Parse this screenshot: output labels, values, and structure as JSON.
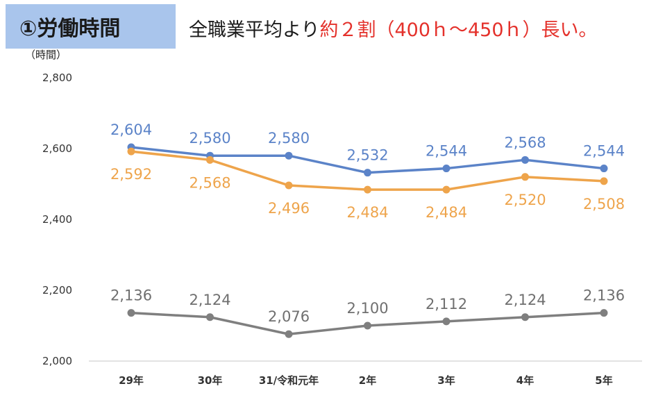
{
  "header": {
    "badge": "①労働時間",
    "headline_prefix": "全職業平均より",
    "headline_highlight": "約２割（400ｈ～450ｈ）長い。"
  },
  "colors": {
    "badge_bg": "#a9c5ec",
    "highlight": "#e4312b",
    "series_blue": "#5b83c8",
    "series_orange": "#eea44b",
    "series_gray": "#7f7f7f",
    "axis": "#d9d9d9"
  },
  "chart_data": {
    "type": "line",
    "unit_label": "（時間）",
    "categories": [
      "29年",
      "30年",
      "31/令和元年",
      "2年",
      "3年",
      "4年",
      "5年"
    ],
    "ylim": [
      2000,
      2800
    ],
    "yticks": [
      2000,
      2200,
      2400,
      2600,
      2800
    ],
    "ytick_labels": [
      "2,000",
      "2,200",
      "2,400",
      "2,600",
      "2,800"
    ],
    "grid": false,
    "legend": "none",
    "series": [
      {
        "color": "#5b83c8",
        "label_color": "#5b83c8",
        "values": [
          2604,
          2580,
          2580,
          2532,
          2544,
          2568,
          2544
        ],
        "labels": [
          "2,604",
          "2,580",
          "2,580",
          "2,532",
          "2,544",
          "2,568",
          "2,544"
        ],
        "label_position": "above"
      },
      {
        "color": "#eea44b",
        "label_color": "#eea44b",
        "values": [
          2592,
          2568,
          2496,
          2484,
          2484,
          2520,
          2508
        ],
        "labels": [
          "2,592",
          "2,568",
          "2,496",
          "2,484",
          "2,484",
          "2,520",
          "2,508"
        ],
        "label_position": "below"
      },
      {
        "color": "#7f7f7f",
        "label_color": "#6f6f6f",
        "values": [
          2136,
          2124,
          2076,
          2100,
          2112,
          2124,
          2136
        ],
        "labels": [
          "2,136",
          "2,124",
          "2,076",
          "2,100",
          "2,112",
          "2,124",
          "2,136"
        ],
        "label_position": "above"
      }
    ]
  }
}
